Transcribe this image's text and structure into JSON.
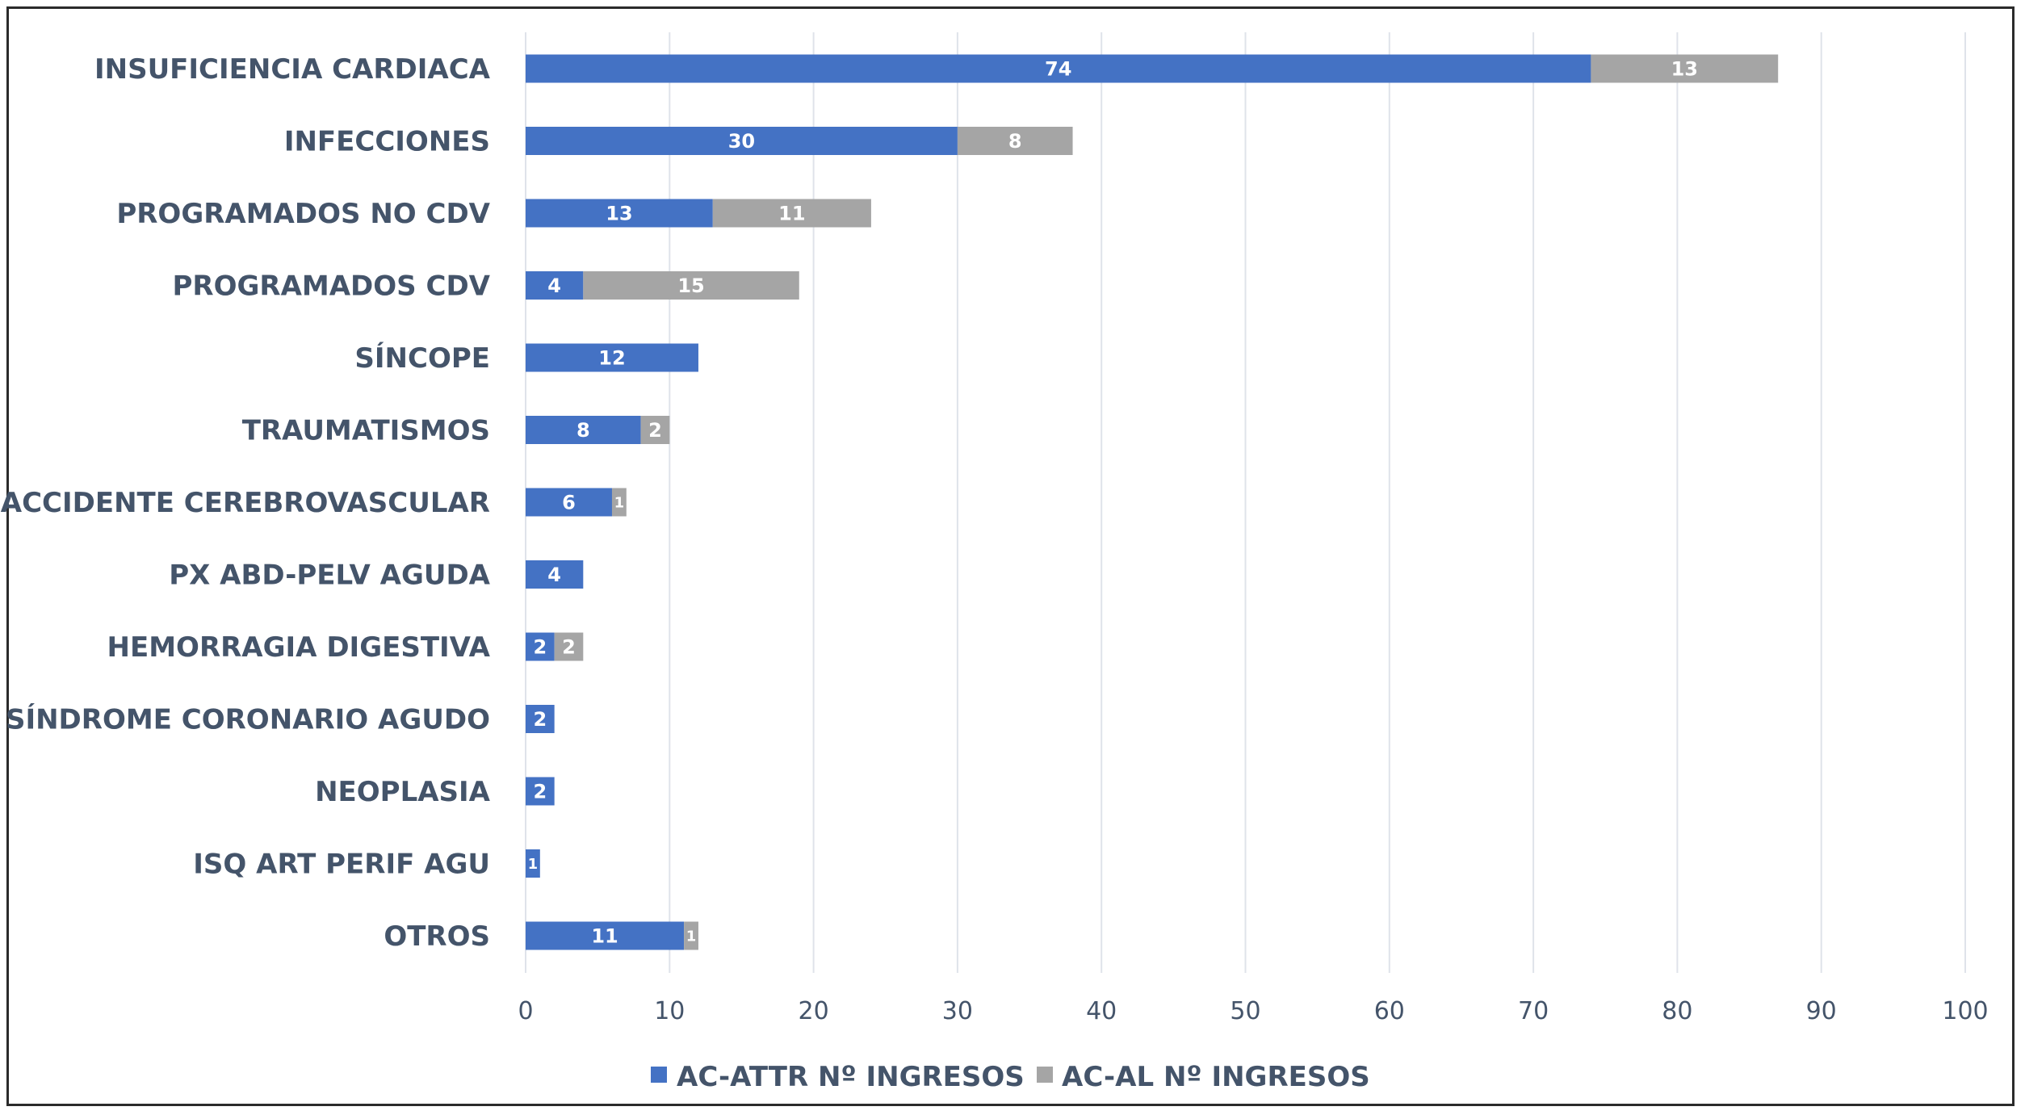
{
  "chart_data": {
    "type": "bar",
    "orientation": "horizontal",
    "stacked": true,
    "categories": [
      "INSUFICIENCIA CARDIACA",
      "INFECCIONES",
      "PROGRAMADOS NO CDV",
      "PROGRAMADOS CDV",
      "SÍNCOPE",
      "TRAUMATISMOS",
      "ACCIDENTE CEREBROVASCULAR",
      "PX ABD-PELV AGUDA",
      "HEMORRAGIA DIGESTIVA",
      "SÍNDROME CORONARIO AGUDO",
      "NEOPLASIA",
      "ISQ ART PERIF AGU",
      "OTROS"
    ],
    "series": [
      {
        "name": "AC-ATTR Nº INGRESOS",
        "color": "#4472c4",
        "values": [
          74,
          30,
          13,
          4,
          12,
          8,
          6,
          4,
          2,
          2,
          2,
          1,
          11
        ]
      },
      {
        "name": "AC-AL Nº INGRESOS",
        "color": "#a5a5a5",
        "values": [
          13,
          8,
          11,
          15,
          null,
          2,
          1,
          null,
          2,
          null,
          null,
          null,
          1
        ]
      }
    ],
    "xlim": [
      0,
      100
    ],
    "xticks": [
      "0",
      "10",
      "20",
      "30",
      "40",
      "50",
      "60",
      "70",
      "80",
      "90",
      "100"
    ],
    "grid": "vertical",
    "legend_position": "bottom",
    "title": "",
    "xlabel": "",
    "ylabel": ""
  }
}
